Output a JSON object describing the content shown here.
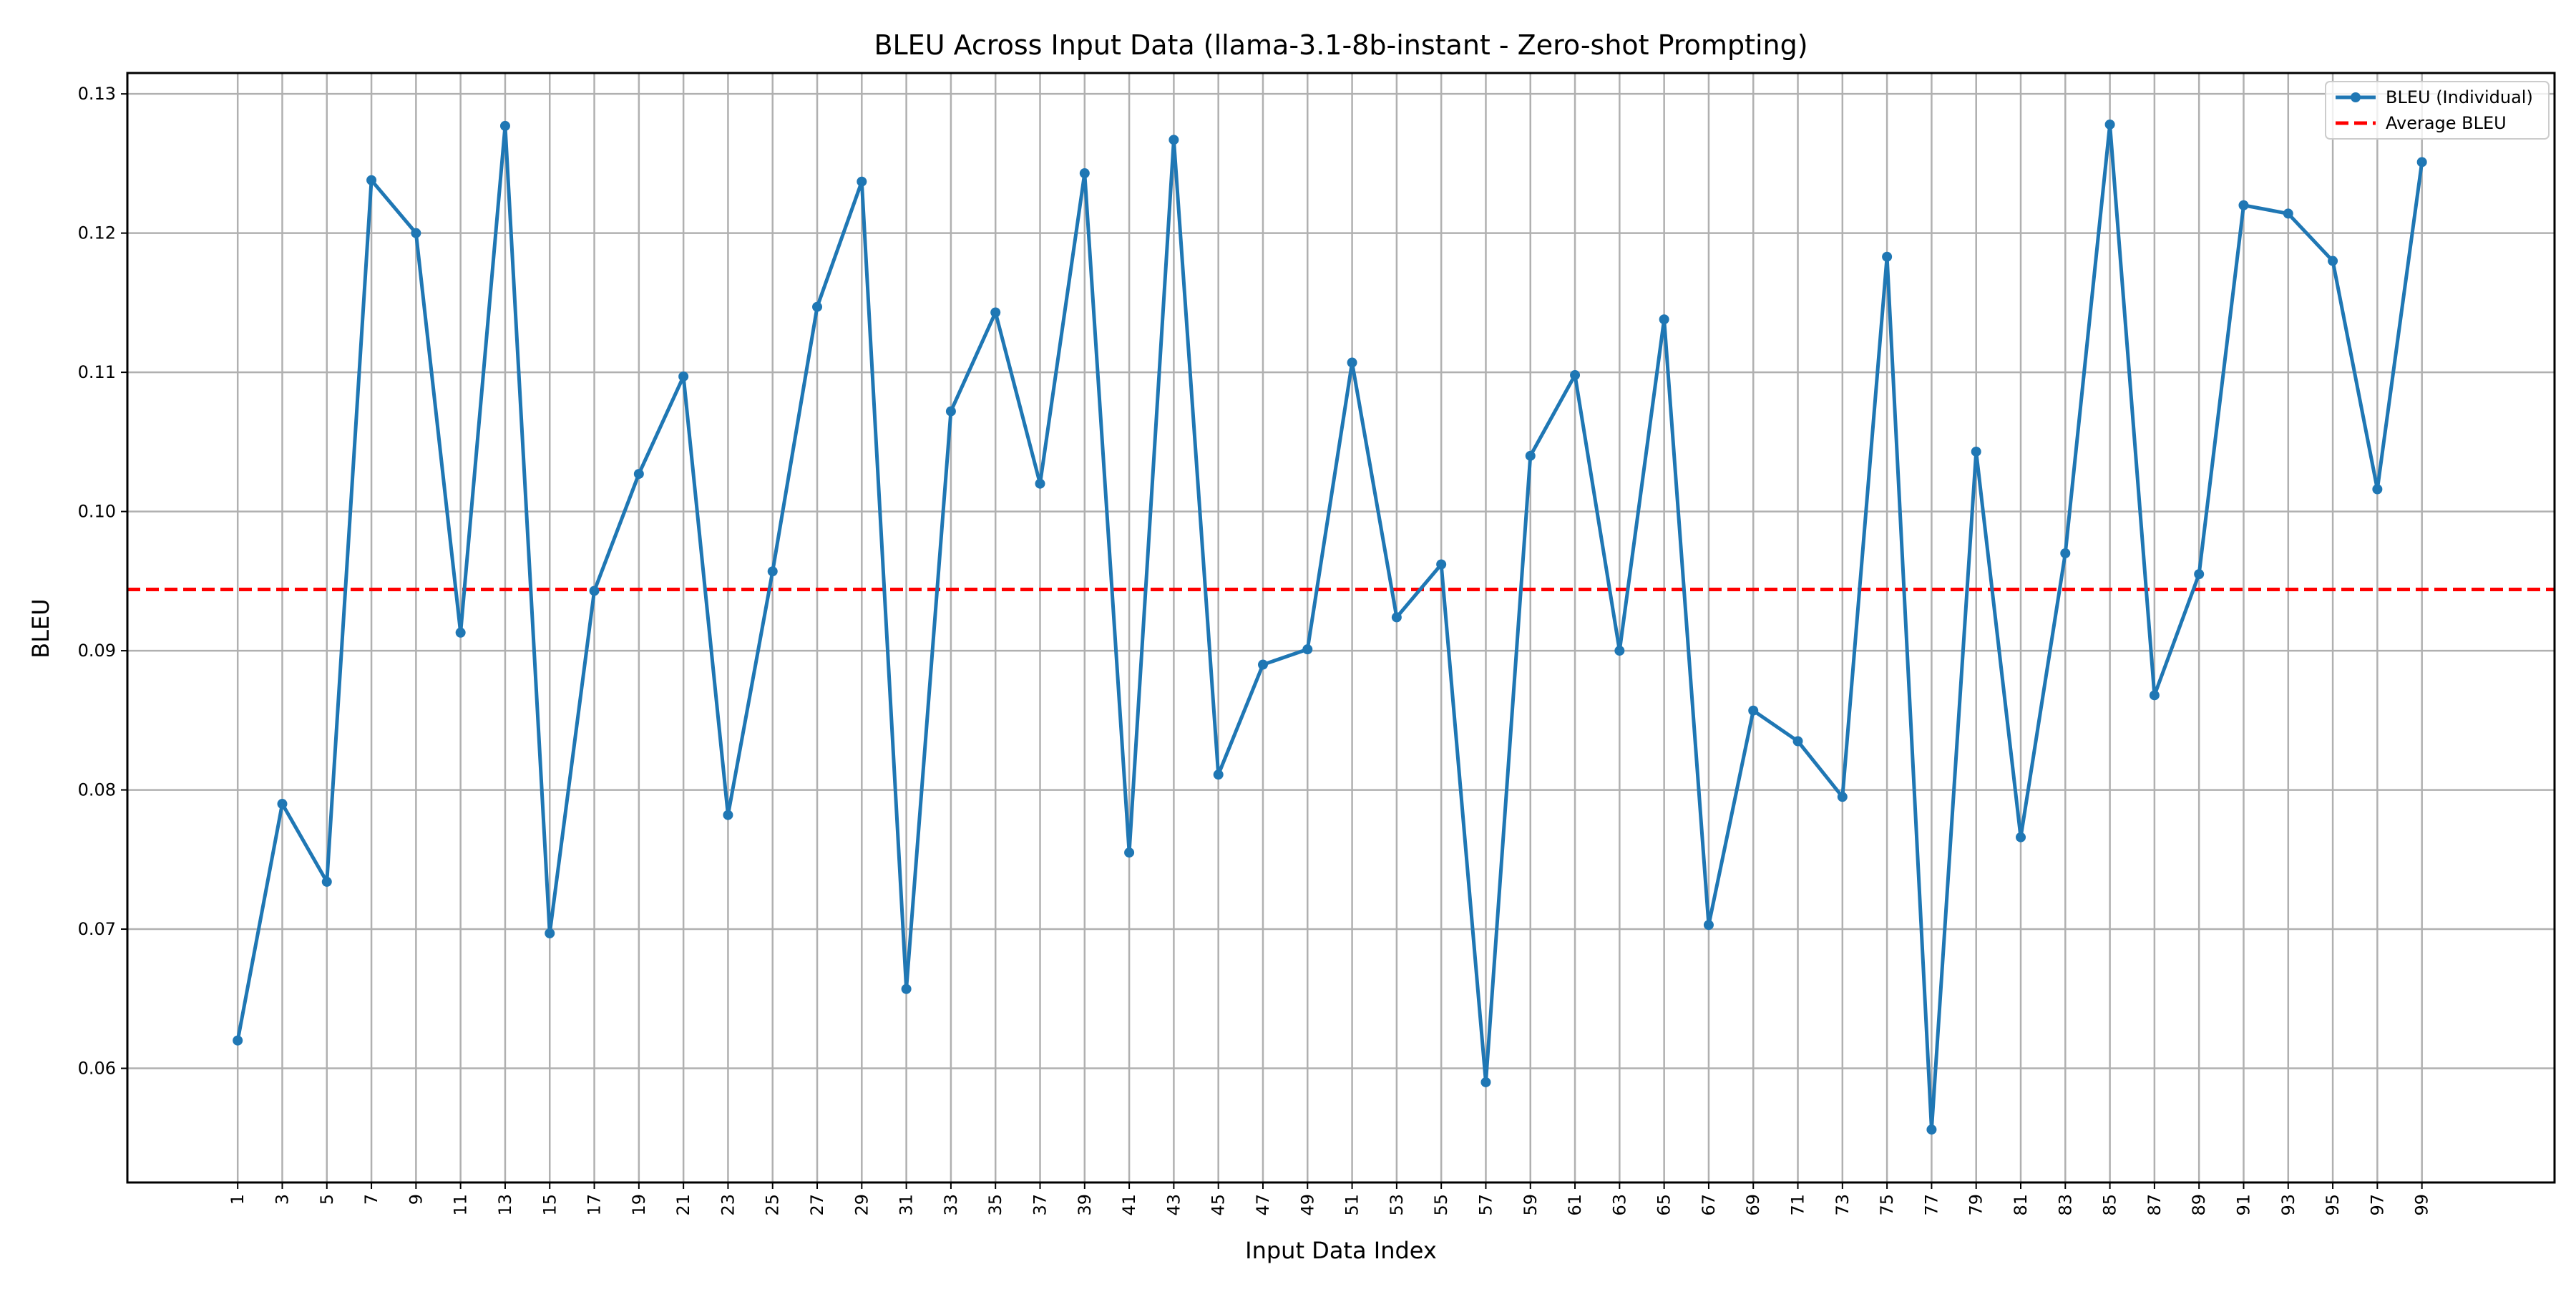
{
  "chart_data": {
    "type": "line",
    "title": "BLEU Across Input Data (llama-3.1-8b-instant - Zero-shot Prompting)",
    "xlabel": "Input Data Index",
    "ylabel": "BLEU",
    "x": [
      1,
      3,
      5,
      7,
      9,
      11,
      13,
      15,
      17,
      19,
      21,
      23,
      25,
      27,
      29,
      31,
      33,
      35,
      37,
      39,
      41,
      43,
      45,
      47,
      49,
      51,
      53,
      55,
      57,
      59,
      61,
      63,
      65,
      67,
      69,
      71,
      73,
      75,
      77,
      79,
      81,
      83,
      85,
      87,
      89,
      91,
      93,
      95,
      97,
      99
    ],
    "xticks": [
      "1",
      "3",
      "5",
      "7",
      "9",
      "11",
      "13",
      "15",
      "17",
      "19",
      "21",
      "23",
      "25",
      "27",
      "29",
      "31",
      "33",
      "35",
      "37",
      "39",
      "41",
      "43",
      "45",
      "47",
      "49",
      "51",
      "53",
      "55",
      "57",
      "59",
      "61",
      "63",
      "65",
      "67",
      "69",
      "71",
      "73",
      "75",
      "77",
      "79",
      "81",
      "83",
      "85",
      "87",
      "89",
      "91",
      "93",
      "95",
      "97",
      "99"
    ],
    "yticks": [
      "0.06",
      "0.07",
      "0.08",
      "0.09",
      "0.10",
      "0.11",
      "0.12",
      "0.13"
    ],
    "ylim": [
      0.0518,
      0.1315
    ],
    "xlim": [
      -3.95,
      104.95
    ],
    "grid": true,
    "legend_position": "top-right",
    "series": [
      {
        "name": "BLEU (Individual)",
        "color": "#1f77b4",
        "style": "solid-line-with-dot-markers",
        "values": [
          0.062,
          0.079,
          0.0734,
          0.1238,
          0.12,
          0.0913,
          0.1277,
          0.0697,
          0.0943,
          0.1027,
          0.1097,
          0.0782,
          0.0957,
          0.1147,
          0.1237,
          0.0657,
          0.1072,
          0.1143,
          0.102,
          0.1243,
          0.0755,
          0.1267,
          0.0811,
          0.089,
          0.0901,
          0.1107,
          0.0924,
          0.0962,
          0.059,
          0.104,
          0.1098,
          0.09,
          0.1138,
          0.0703,
          0.0857,
          0.0835,
          0.0795,
          0.1183,
          0.0556,
          0.1043,
          0.0766,
          0.097,
          0.1278,
          0.0868,
          0.0955,
          0.122,
          0.1214,
          0.118,
          0.1016,
          0.1251
        ]
      },
      {
        "name": "Average BLEU",
        "color": "#ff0000",
        "style": "dashed-horizontal-line",
        "value": 0.0944
      }
    ]
  }
}
